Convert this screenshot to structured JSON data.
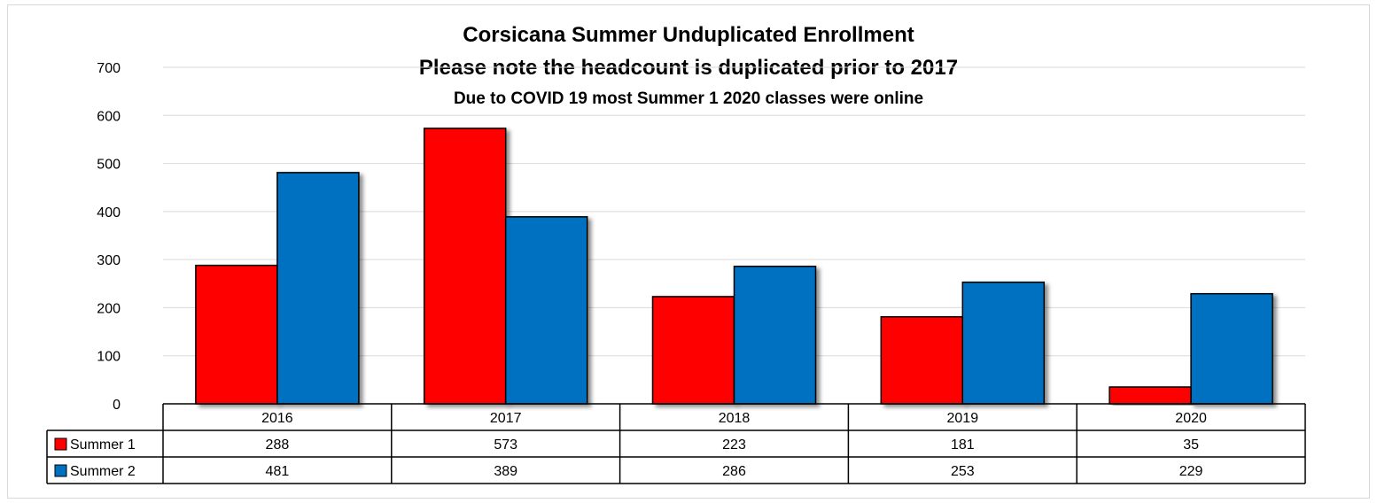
{
  "chart_data": {
    "type": "bar",
    "title": "Corsicana Summer Unduplicated Enrollment",
    "subtitle": "Please note the headcount is duplicated prior to 2017",
    "note": "Due to COVID 19 most Summer 1 2020 classes were online",
    "categories": [
      "2016",
      "2017",
      "2018",
      "2019",
      "2020"
    ],
    "series": [
      {
        "name": "Summer 1",
        "values": [
          288,
          573,
          223,
          181,
          35
        ],
        "color": "#ff0000"
      },
      {
        "name": "Summer 2",
        "values": [
          481,
          389,
          286,
          253,
          229
        ],
        "color": "#0070c0"
      }
    ],
    "ylim": [
      0,
      700
    ],
    "yticks": [
      0,
      100,
      200,
      300,
      400,
      500,
      600,
      700
    ],
    "grid": true,
    "legend": "data table"
  }
}
